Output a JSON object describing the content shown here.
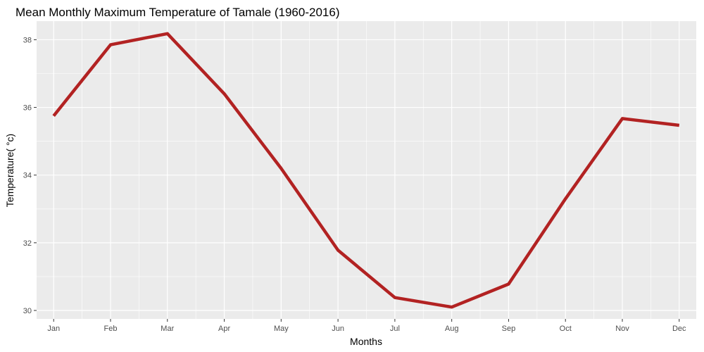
{
  "chart_data": {
    "type": "line",
    "title": "Mean Monthly Maximum Temperature  of Tamale (1960-2016)",
    "xlabel": "Months",
    "ylabel": "Temperature( °c)",
    "categories": [
      "Jan",
      "Feb",
      "Mar",
      "Apr",
      "May",
      "Jun",
      "Jul",
      "Aug",
      "Sep",
      "Oct",
      "Nov",
      "Dec"
    ],
    "series": [
      {
        "values": [
          35.75,
          37.85,
          38.18,
          36.4,
          34.2,
          31.78,
          30.38,
          30.1,
          30.78,
          33.3,
          35.67,
          35.47
        ],
        "color": "#b22222"
      }
    ],
    "ylim": [
      29.75,
      38.55
    ],
    "yticks": [
      30,
      32,
      34,
      36,
      38
    ],
    "grid": true,
    "panel_background": "#ebebeb",
    "grid_color": "#ffffff"
  }
}
